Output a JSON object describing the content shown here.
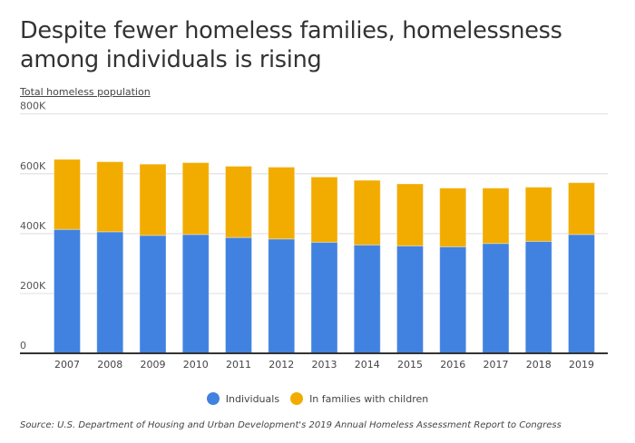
{
  "chart_data": {
    "type": "bar",
    "stacked": true,
    "title": "Despite fewer homeless families, homelessness among individuals is rising",
    "ylabel": "Total homeless population",
    "xlabel": "",
    "ylim": [
      0,
      800000
    ],
    "yticks": [
      0,
      200000,
      400000,
      600000,
      800000
    ],
    "ytick_labels": [
      "0",
      "200K",
      "400K",
      "600K",
      "800K"
    ],
    "grid": true,
    "legend_position": "bottom",
    "categories": [
      "2007",
      "2008",
      "2009",
      "2010",
      "2011",
      "2012",
      "2013",
      "2014",
      "2015",
      "2016",
      "2017",
      "2018",
      "2019"
    ],
    "series": [
      {
        "name": "Individuals",
        "color": "#4182e0",
        "values": [
          414000,
          406000,
          394000,
          397000,
          387000,
          382000,
          371000,
          362000,
          359000,
          356000,
          367000,
          374000,
          397000
        ]
      },
      {
        "name": "In families with children",
        "color": "#f2ac00",
        "values": [
          234000,
          234000,
          238000,
          240000,
          238000,
          240000,
          218000,
          216000,
          207000,
          196000,
          185000,
          181000,
          173000
        ]
      }
    ],
    "source": "Source: U.S. Department of Housing and Urban Development's 2019 Annual Homeless Assessment Report to Congress"
  }
}
